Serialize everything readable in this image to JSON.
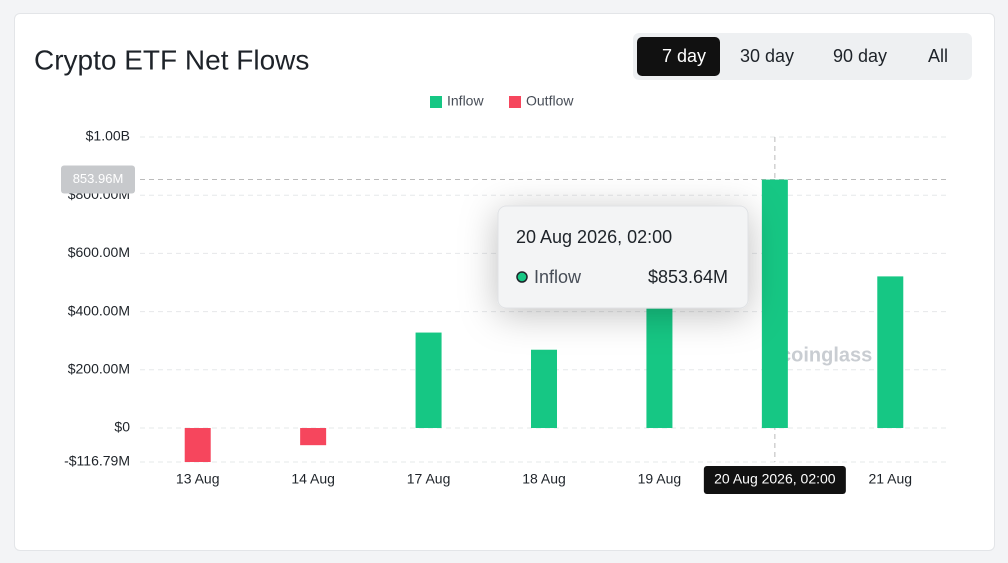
{
  "chart_data": {
    "type": "bar",
    "title": "Crypto ETF Net Flows",
    "ranges": [
      "7 day",
      "30 day",
      "90 day",
      "All"
    ],
    "selected_range": "7 day",
    "categories": [
      "13 Aug",
      "14 Aug",
      "17 Aug",
      "18 Aug",
      "19 Aug",
      "20 Aug 2026, 02:00",
      "21 Aug"
    ],
    "highlighted_category": 5,
    "series": [
      {
        "name": "Inflow",
        "color": "#16c784",
        "values": [
          null,
          null,
          328,
          269,
          410,
          853.64,
          521
        ]
      },
      {
        "name": "Outflow",
        "color": "#f6465d",
        "values": [
          -116.79,
          -59,
          null,
          null,
          null,
          null,
          null
        ]
      }
    ],
    "ylim": [
      -116.79,
      1000
    ],
    "yticks": [
      {
        "value": -116.79,
        "label": "-$116.79M"
      },
      {
        "value": 0,
        "label": "$0"
      },
      {
        "value": 200,
        "label": "$200.00M"
      },
      {
        "value": 400,
        "label": "$400.00M"
      },
      {
        "value": 600,
        "label": "$600.00M"
      },
      {
        "value": 800,
        "label": "$800.00M"
      },
      {
        "value": 1000,
        "label": "$1.00B"
      }
    ],
    "grid": true,
    "crosshair": {
      "value": 853.96,
      "label": "853.96M"
    },
    "tooltip": {
      "title": "20 Aug 2026, 02:00",
      "name": "Inflow",
      "value": 853.64,
      "value_label": "$853.64M"
    },
    "watermark": "coinglass"
  }
}
